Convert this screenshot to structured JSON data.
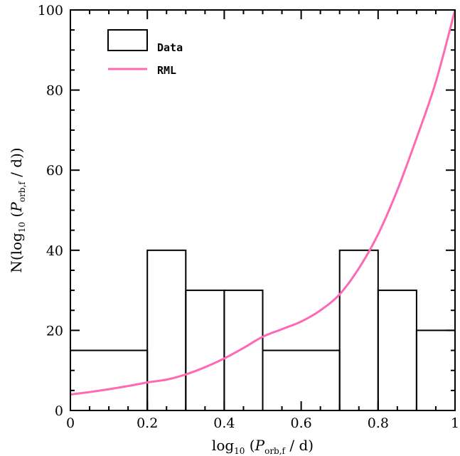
{
  "chart_data": {
    "type": "bar",
    "title": "",
    "xlabel": {
      "base": "log",
      "base_sub": "10",
      "open": " (",
      "var": "P",
      "var_sub": "orb,f",
      "close": " / d)"
    },
    "ylabel": {
      "base": "N(log",
      "base_sub": "10",
      "open": " (",
      "var": "P",
      "var_sub": "orb,f",
      "close": " / d))"
    },
    "xlim": [
      0,
      1
    ],
    "ylim": [
      0,
      100
    ],
    "x_ticks": [
      0,
      0.2,
      0.4,
      0.6,
      0.8,
      1
    ],
    "x_tick_labels": [
      "0",
      "0.2",
      "0.4",
      "0.6",
      "0.8",
      "1"
    ],
    "y_ticks": [
      0,
      20,
      40,
      60,
      80,
      100
    ],
    "y_tick_labels": [
      "0",
      "20",
      "40",
      "60",
      "80",
      "100"
    ],
    "legend": {
      "position": "top-left",
      "entries": [
        "Data",
        "RML"
      ]
    },
    "series": [
      {
        "name": "Data",
        "kind": "histogram",
        "bins": [
          {
            "x0": 0.0,
            "x1": 0.2,
            "value": 15
          },
          {
            "x0": 0.2,
            "x1": 0.3,
            "value": 40
          },
          {
            "x0": 0.3,
            "x1": 0.4,
            "value": 30
          },
          {
            "x0": 0.4,
            "x1": 0.5,
            "value": 30
          },
          {
            "x0": 0.5,
            "x1": 0.7,
            "value": 15
          },
          {
            "x0": 0.7,
            "x1": 0.8,
            "value": 40
          },
          {
            "x0": 0.8,
            "x1": 0.9,
            "value": 30
          },
          {
            "x0": 0.9,
            "x1": 1.0,
            "value": 20
          }
        ],
        "color": "#000000"
      },
      {
        "name": "RML",
        "kind": "line",
        "color": "#ff69b4",
        "x": [
          0.0,
          0.05,
          0.1,
          0.15,
          0.2,
          0.25,
          0.3,
          0.35,
          0.4,
          0.45,
          0.5,
          0.55,
          0.6,
          0.65,
          0.7,
          0.75,
          0.8,
          0.85,
          0.9,
          0.95,
          1.0
        ],
        "y": [
          4,
          4.6,
          5.3,
          6.1,
          7,
          7.7,
          9,
          10.8,
          13,
          15.6,
          18.4,
          20.3,
          22.2,
          25,
          29,
          35.5,
          44,
          55,
          68,
          82,
          100
        ]
      }
    ]
  }
}
